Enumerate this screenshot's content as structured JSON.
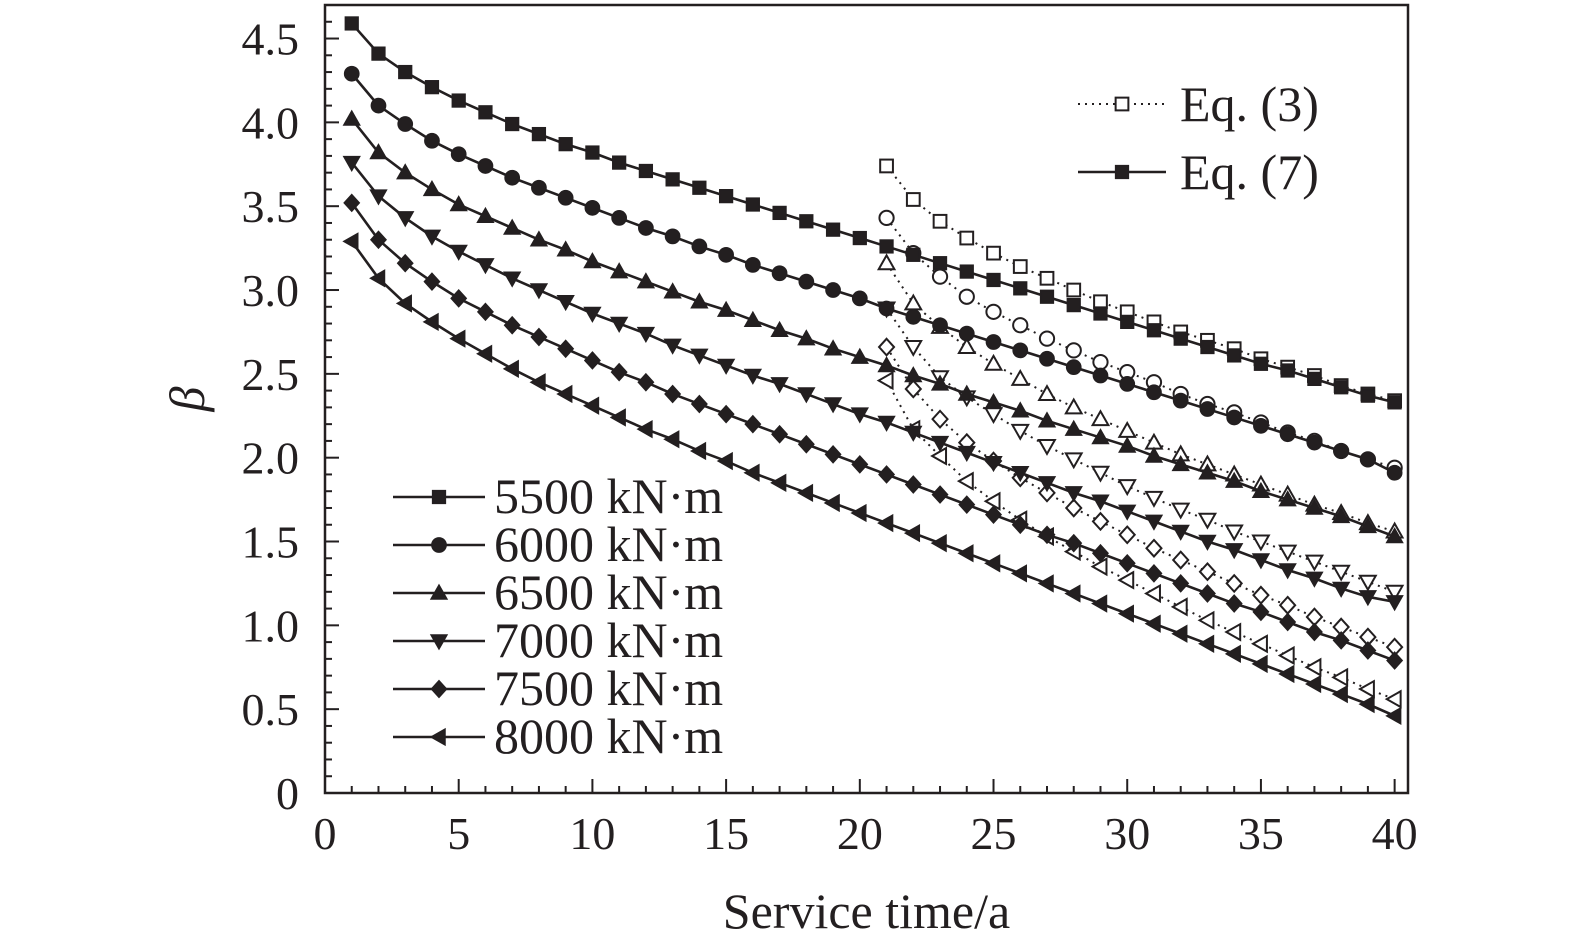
{
  "chart_data": {
    "type": "line",
    "title": "",
    "xlabel": "Service time/a",
    "ylabel": "β",
    "xlim": [
      0,
      40.5
    ],
    "ylim": [
      0,
      4.7
    ],
    "x_ticks": [
      "0",
      "5",
      "10",
      "15",
      "20",
      "25",
      "30",
      "35",
      "40"
    ],
    "y_ticks": [
      "0",
      "0.5",
      "1.0",
      "1.5",
      "2.0",
      "2.5",
      "3.0",
      "3.5",
      "4.0",
      "4.5"
    ],
    "grid": false,
    "markers": [
      "square",
      "circle",
      "triangle-up",
      "triangle-down",
      "diamond",
      "triangle-left"
    ],
    "legend_series": {
      "placement": "bottom-left",
      "entries": [
        "5500 kN·m",
        "6000 kN·m",
        "6500 kN·m",
        "7000 kN·m",
        "7500 kN·m",
        "8000 kN·m"
      ]
    },
    "legend_method": {
      "placement": "top-right",
      "entries": [
        {
          "label": "Eq. (3)",
          "style": "dotted-open"
        },
        {
          "label": "Eq. (7)",
          "style": "solid-filled"
        }
      ]
    },
    "series_eq7": [
      {
        "name": "5500 kN·m",
        "x": [
          1,
          2,
          3,
          4,
          5,
          6,
          7,
          8,
          9,
          10,
          11,
          12,
          13,
          14,
          15,
          16,
          17,
          18,
          19,
          20,
          21,
          22,
          23,
          24,
          25,
          26,
          27,
          28,
          29,
          30,
          31,
          32,
          33,
          34,
          35,
          36,
          37,
          38,
          39,
          40
        ],
        "values": [
          4.59,
          4.41,
          4.3,
          4.21,
          4.13,
          4.06,
          3.99,
          3.93,
          3.87,
          3.82,
          3.76,
          3.71,
          3.66,
          3.61,
          3.56,
          3.51,
          3.46,
          3.41,
          3.36,
          3.31,
          3.26,
          3.21,
          3.16,
          3.11,
          3.06,
          3.01,
          2.96,
          2.91,
          2.86,
          2.81,
          2.76,
          2.71,
          2.66,
          2.61,
          2.56,
          2.52,
          2.47,
          2.42,
          2.37,
          2.33
        ]
      },
      {
        "name": "6000 kN·m",
        "x": [
          1,
          2,
          3,
          4,
          5,
          6,
          7,
          8,
          9,
          10,
          11,
          12,
          13,
          14,
          15,
          16,
          17,
          18,
          19,
          20,
          21,
          22,
          23,
          24,
          25,
          26,
          27,
          28,
          29,
          30,
          31,
          32,
          33,
          34,
          35,
          36,
          37,
          38,
          39,
          40
        ],
        "values": [
          4.29,
          4.1,
          3.99,
          3.89,
          3.81,
          3.74,
          3.67,
          3.61,
          3.55,
          3.49,
          3.43,
          3.37,
          3.32,
          3.26,
          3.21,
          3.15,
          3.1,
          3.05,
          3.0,
          2.95,
          2.89,
          2.84,
          2.79,
          2.74,
          2.69,
          2.64,
          2.59,
          2.54,
          2.49,
          2.44,
          2.39,
          2.34,
          2.29,
          2.24,
          2.19,
          2.14,
          2.09,
          2.04,
          1.99,
          1.91
        ]
      },
      {
        "name": "6500 kN·m",
        "x": [
          1,
          2,
          3,
          4,
          5,
          6,
          7,
          8,
          9,
          10,
          11,
          12,
          13,
          14,
          15,
          16,
          17,
          18,
          19,
          20,
          21,
          22,
          23,
          24,
          25,
          26,
          27,
          28,
          29,
          30,
          31,
          32,
          33,
          34,
          35,
          36,
          37,
          38,
          39,
          40
        ],
        "values": [
          4.02,
          3.82,
          3.7,
          3.6,
          3.51,
          3.44,
          3.37,
          3.3,
          3.24,
          3.17,
          3.11,
          3.05,
          2.99,
          2.93,
          2.88,
          2.82,
          2.76,
          2.71,
          2.65,
          2.6,
          2.55,
          2.49,
          2.44,
          2.38,
          2.33,
          2.28,
          2.22,
          2.17,
          2.12,
          2.07,
          2.01,
          1.96,
          1.91,
          1.86,
          1.8,
          1.75,
          1.7,
          1.65,
          1.59,
          1.53
        ]
      },
      {
        "name": "7000 kN·m",
        "x": [
          1,
          2,
          3,
          4,
          5,
          6,
          7,
          8,
          9,
          10,
          11,
          12,
          13,
          14,
          15,
          16,
          17,
          18,
          19,
          20,
          21,
          22,
          23,
          24,
          25,
          26,
          27,
          28,
          29,
          30,
          31,
          32,
          33,
          34,
          35,
          36,
          37,
          38,
          39,
          40
        ],
        "values": [
          3.76,
          3.56,
          3.43,
          3.32,
          3.23,
          3.15,
          3.07,
          3.0,
          2.93,
          2.86,
          2.8,
          2.74,
          2.67,
          2.61,
          2.55,
          2.49,
          2.44,
          2.38,
          2.32,
          2.26,
          2.21,
          2.15,
          2.09,
          2.03,
          1.97,
          1.91,
          1.85,
          1.79,
          1.74,
          1.68,
          1.62,
          1.56,
          1.5,
          1.45,
          1.39,
          1.33,
          1.28,
          1.22,
          1.17,
          1.14
        ]
      },
      {
        "name": "7500 kN·m",
        "x": [
          1,
          2,
          3,
          4,
          5,
          6,
          7,
          8,
          9,
          10,
          11,
          12,
          13,
          14,
          15,
          16,
          17,
          18,
          19,
          20,
          21,
          22,
          23,
          24,
          25,
          26,
          27,
          28,
          29,
          30,
          31,
          32,
          33,
          34,
          35,
          36,
          37,
          38,
          39,
          40
        ],
        "values": [
          3.52,
          3.3,
          3.16,
          3.05,
          2.95,
          2.87,
          2.79,
          2.72,
          2.65,
          2.58,
          2.51,
          2.45,
          2.38,
          2.32,
          2.26,
          2.2,
          2.14,
          2.08,
          2.02,
          1.96,
          1.9,
          1.84,
          1.78,
          1.72,
          1.66,
          1.6,
          1.54,
          1.49,
          1.43,
          1.37,
          1.31,
          1.25,
          1.19,
          1.13,
          1.08,
          1.02,
          0.96,
          0.91,
          0.85,
          0.79
        ]
      },
      {
        "name": "8000 kN·m",
        "x": [
          1,
          2,
          3,
          4,
          5,
          6,
          7,
          8,
          9,
          10,
          11,
          12,
          13,
          14,
          15,
          16,
          17,
          18,
          19,
          20,
          21,
          22,
          23,
          24,
          25,
          26,
          27,
          28,
          29,
          30,
          31,
          32,
          33,
          34,
          35,
          36,
          37,
          38,
          39,
          40
        ],
        "values": [
          3.29,
          3.07,
          2.92,
          2.81,
          2.71,
          2.62,
          2.53,
          2.45,
          2.38,
          2.31,
          2.24,
          2.17,
          2.11,
          2.04,
          1.98,
          1.91,
          1.85,
          1.79,
          1.73,
          1.67,
          1.61,
          1.55,
          1.49,
          1.43,
          1.37,
          1.31,
          1.25,
          1.19,
          1.13,
          1.07,
          1.01,
          0.95,
          0.89,
          0.83,
          0.77,
          0.71,
          0.65,
          0.59,
          0.53,
          0.46
        ]
      }
    ],
    "series_eq3": [
      {
        "name": "5500 kN·m",
        "x": [
          21,
          22,
          23,
          24,
          25,
          26,
          27,
          28,
          29,
          30,
          31,
          32,
          33,
          34,
          35,
          36,
          37,
          38,
          39,
          40
        ],
        "values": [
          3.74,
          3.54,
          3.41,
          3.31,
          3.22,
          3.14,
          3.07,
          3.0,
          2.93,
          2.87,
          2.81,
          2.75,
          2.7,
          2.65,
          2.59,
          2.54,
          2.49,
          2.43,
          2.38,
          2.34
        ]
      },
      {
        "name": "6000 kN·m",
        "x": [
          21,
          22,
          23,
          24,
          25,
          26,
          27,
          28,
          29,
          30,
          31,
          32,
          33,
          34,
          35,
          36,
          37,
          38,
          39,
          40
        ],
        "values": [
          3.43,
          3.22,
          3.08,
          2.96,
          2.87,
          2.79,
          2.71,
          2.64,
          2.57,
          2.51,
          2.45,
          2.38,
          2.32,
          2.27,
          2.21,
          2.15,
          2.1,
          2.04,
          1.99,
          1.94
        ]
      },
      {
        "name": "6500 kN·m",
        "x": [
          21,
          22,
          23,
          24,
          25,
          26,
          27,
          28,
          29,
          30,
          31,
          32,
          33,
          34,
          35,
          36,
          37,
          38,
          39,
          40
        ],
        "values": [
          3.16,
          2.92,
          2.78,
          2.66,
          2.56,
          2.47,
          2.38,
          2.3,
          2.23,
          2.16,
          2.09,
          2.02,
          1.96,
          1.9,
          1.84,
          1.78,
          1.72,
          1.67,
          1.61,
          1.56
        ]
      },
      {
        "name": "7000 kN·m",
        "x": [
          21,
          22,
          23,
          24,
          25,
          26,
          27,
          28,
          29,
          30,
          31,
          32,
          33,
          34,
          35,
          36,
          37,
          38,
          39,
          40
        ],
        "values": [
          2.89,
          2.66,
          2.48,
          2.36,
          2.26,
          2.16,
          2.07,
          1.99,
          1.91,
          1.83,
          1.76,
          1.69,
          1.63,
          1.56,
          1.5,
          1.44,
          1.38,
          1.32,
          1.26,
          1.2
        ]
      },
      {
        "name": "7500 kN·m",
        "x": [
          21,
          22,
          23,
          24,
          25,
          26,
          27,
          28,
          29,
          30,
          31,
          32,
          33,
          34,
          35,
          36,
          37,
          38,
          39,
          40
        ],
        "values": [
          2.66,
          2.41,
          2.23,
          2.09,
          1.98,
          1.88,
          1.79,
          1.7,
          1.62,
          1.54,
          1.46,
          1.39,
          1.32,
          1.25,
          1.18,
          1.12,
          1.05,
          0.99,
          0.93,
          0.87
        ]
      },
      {
        "name": "8000 kN·m",
        "x": [
          21,
          22,
          23,
          24,
          25,
          26,
          27,
          28,
          29,
          30,
          31,
          32,
          33,
          34,
          35,
          36,
          37,
          38,
          39,
          40
        ],
        "values": [
          2.46,
          2.17,
          2.01,
          1.86,
          1.74,
          1.63,
          1.53,
          1.44,
          1.35,
          1.27,
          1.19,
          1.11,
          1.03,
          0.96,
          0.89,
          0.82,
          0.75,
          0.69,
          0.62,
          0.56
        ]
      }
    ]
  }
}
